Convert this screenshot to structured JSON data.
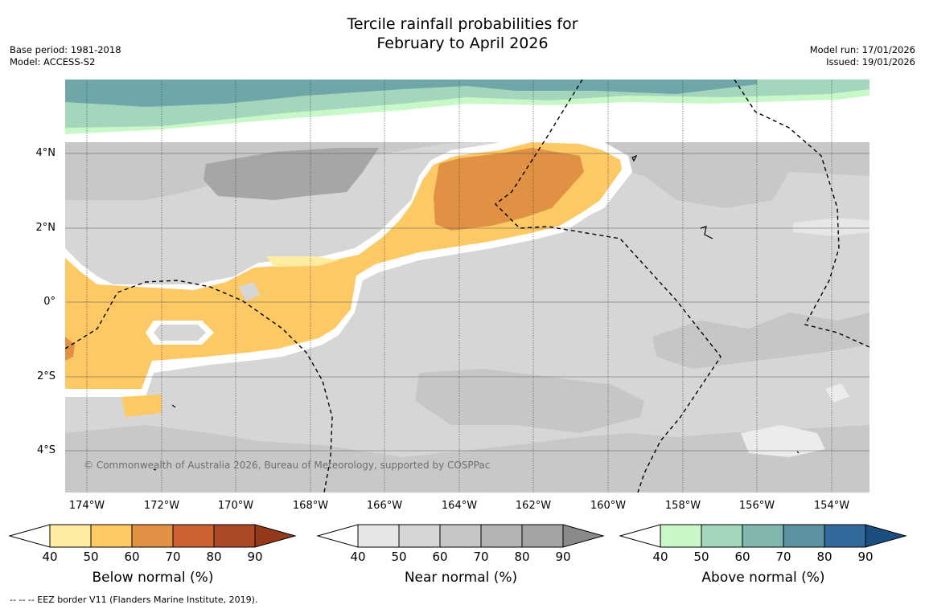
{
  "title": {
    "line1": "Tercile rainfall probabilities for",
    "line2": "February to April 2026"
  },
  "meta_left": {
    "base_period": "Base period: 1981-2018",
    "model": "Model: ACCESS-S2"
  },
  "meta_right": {
    "model_run": "Model run: 17/01/2026",
    "issued": "Issued: 19/01/2026"
  },
  "credit": "© Commonwealth of Australia 2026, Bureau of Meteorology, supported by COSPPac",
  "lat_labels": [
    "4°N",
    "2°N",
    "0°",
    "2°S",
    "4°S"
  ],
  "lon_labels": [
    "174°W",
    "172°W",
    "170°W",
    "168°W",
    "166°W",
    "164°W",
    "162°W",
    "160°W",
    "158°W",
    "156°W",
    "154°W"
  ],
  "colorbars": [
    {
      "title": "Below normal (%)",
      "ticks": [
        "40",
        "50",
        "60",
        "70",
        "80",
        "90"
      ],
      "colors": [
        "#ffffff",
        "#ffeca1",
        "#fdc965",
        "#e09144",
        "#cc6232",
        "#ad4a26",
        "#943a1b"
      ]
    },
    {
      "title": "Near normal (%)",
      "ticks": [
        "40",
        "50",
        "60",
        "70",
        "80",
        "90"
      ],
      "colors": [
        "#ffffff",
        "#e6e6e6",
        "#d6d6d6",
        "#c6c6c6",
        "#b4b4b4",
        "#a4a4a4",
        "#8a8a8a"
      ]
    },
    {
      "title": "Above normal (%)",
      "ticks": [
        "40",
        "50",
        "60",
        "70",
        "80",
        "90"
      ],
      "colors": [
        "#ffffff",
        "#c8f7c8",
        "#a3d6bd",
        "#82b7b0",
        "#5e92a2",
        "#336a9d",
        "#1b4d7f"
      ]
    }
  ],
  "footnote": "--  --  -- EEZ border V11 (Flanders Marine Institute, 2019)."
}
